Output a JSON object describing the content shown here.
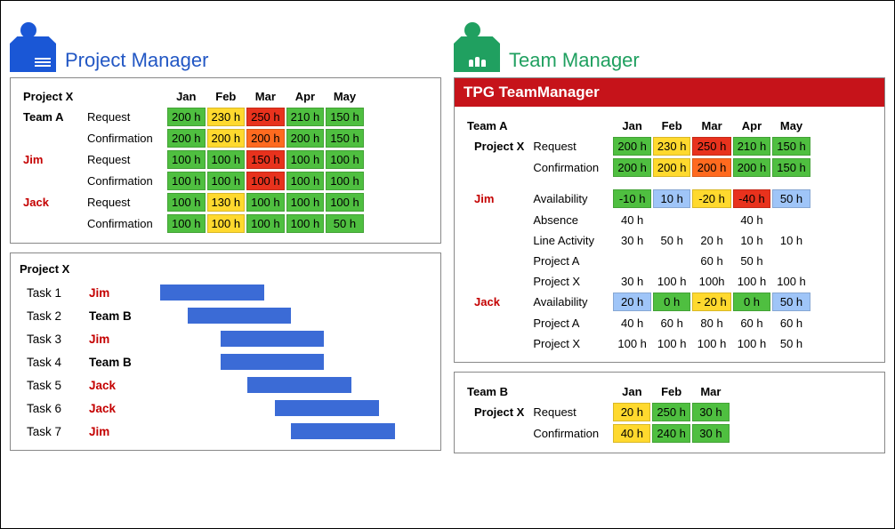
{
  "colors": {
    "green": "#4fbf40",
    "yellow": "#ffd92e",
    "orange": "#ff6a1f",
    "red": "#e8321d",
    "blue_light": "#9fc5f8",
    "gantt_bar": "#3b6bd6",
    "banner_red": "#c6131a",
    "pm_title": "#2257c4",
    "tm_title": "#20a060",
    "name_red": "#c40000"
  },
  "pm": {
    "title": "Project Manager",
    "table": {
      "project": "Project X",
      "months": [
        "Jan",
        "Feb",
        "Mar",
        "Apr",
        "May"
      ],
      "rows": [
        {
          "c1": "Team A",
          "c2": "Request",
          "c1_style": "bold",
          "cells": [
            {
              "v": "200 h",
              "c": "green"
            },
            {
              "v": "230 h",
              "c": "yellow"
            },
            {
              "v": "250 h",
              "c": "red"
            },
            {
              "v": "210 h",
              "c": "green"
            },
            {
              "v": "150 h",
              "c": "green"
            }
          ]
        },
        {
          "c1": "",
          "c2": "Confirmation",
          "cells": [
            {
              "v": "200 h",
              "c": "green"
            },
            {
              "v": "200 h",
              "c": "yellow"
            },
            {
              "v": "200 h",
              "c": "orange"
            },
            {
              "v": "200 h",
              "c": "green"
            },
            {
              "v": "150 h",
              "c": "green"
            }
          ]
        },
        {
          "c1": "Jim",
          "c2": "Request",
          "c1_style": "red",
          "cells": [
            {
              "v": "100 h",
              "c": "green"
            },
            {
              "v": "100 h",
              "c": "green"
            },
            {
              "v": "150 h",
              "c": "red"
            },
            {
              "v": "100 h",
              "c": "green"
            },
            {
              "v": "100 h",
              "c": "green"
            }
          ]
        },
        {
          "c1": "",
          "c2": "Confirmation",
          "cells": [
            {
              "v": "100 h",
              "c": "green"
            },
            {
              "v": "100 h",
              "c": "green"
            },
            {
              "v": "100 h",
              "c": "red"
            },
            {
              "v": "100 h",
              "c": "green"
            },
            {
              "v": "100 h",
              "c": "green"
            }
          ]
        },
        {
          "c1": "Jack",
          "c2": "Request",
          "c1_style": "red",
          "cells": [
            {
              "v": "100 h",
              "c": "green"
            },
            {
              "v": "130 h",
              "c": "yellow"
            },
            {
              "v": "100 h",
              "c": "green"
            },
            {
              "v": "100 h",
              "c": "green"
            },
            {
              "v": "100 h",
              "c": "green"
            }
          ]
        },
        {
          "c1": "",
          "c2": "Confirmation",
          "cells": [
            {
              "v": "100 h",
              "c": "green"
            },
            {
              "v": "100 h",
              "c": "yellow"
            },
            {
              "v": "100 h",
              "c": "green"
            },
            {
              "v": "100 h",
              "c": "green"
            },
            {
              "v": "50 h",
              "c": "green"
            }
          ]
        }
      ]
    },
    "gantt": {
      "project": "Project X",
      "track_width_pct": 100,
      "rows": [
        {
          "task": "Task 1",
          "who": "Jim",
          "who_style": "red",
          "start": 0,
          "len": 38
        },
        {
          "task": "Task 2",
          "who": "Team B",
          "who_style": "bold",
          "start": 10,
          "len": 38
        },
        {
          "task": "Task 3",
          "who": "Jim",
          "who_style": "red",
          "start": 22,
          "len": 38
        },
        {
          "task": "Task 4",
          "who": "Team B",
          "who_style": "bold",
          "start": 22,
          "len": 38
        },
        {
          "task": "Task 5",
          "who": "Jack",
          "who_style": "red",
          "start": 32,
          "len": 38
        },
        {
          "task": "Task 6",
          "who": "Jack",
          "who_style": "red",
          "start": 42,
          "len": 38
        },
        {
          "task": "Task 7",
          "who": "Jim",
          "who_style": "red",
          "start": 48,
          "len": 38
        }
      ]
    }
  },
  "tm": {
    "title": "Team Manager",
    "banner": "TPG TeamManager",
    "table": {
      "months": [
        "Jan",
        "Feb",
        "Mar",
        "Apr",
        "May"
      ],
      "rows": [
        {
          "c1": "Team A",
          "c1_style": "bold",
          "c2": "",
          "cells": [
            "",
            "",
            "",
            "",
            ""
          ],
          "plain": true,
          "is_header_row": true
        },
        {
          "c1": "Project X",
          "indent": 1,
          "c2": "Request",
          "cells": [
            {
              "v": "200 h",
              "c": "green"
            },
            {
              "v": "230 h",
              "c": "yellow"
            },
            {
              "v": "250 h",
              "c": "red"
            },
            {
              "v": "210 h",
              "c": "green"
            },
            {
              "v": "150 h",
              "c": "green"
            }
          ]
        },
        {
          "c1": "",
          "c2": "Confirmation",
          "cells": [
            {
              "v": "200 h",
              "c": "green"
            },
            {
              "v": "200 h",
              "c": "yellow"
            },
            {
              "v": "200 h",
              "c": "orange"
            },
            {
              "v": "200 h",
              "c": "green"
            },
            {
              "v": "150 h",
              "c": "green"
            }
          ]
        },
        {
          "spacer": true
        },
        {
          "c1": "Jim",
          "c1_style": "red",
          "indent": 1,
          "c2": "Availability",
          "cells": [
            {
              "v": "-10 h",
              "c": "green"
            },
            {
              "v": "10 h",
              "c": "blue_light"
            },
            {
              "v": "-20 h",
              "c": "yellow"
            },
            {
              "v": "-40 h",
              "c": "red"
            },
            {
              "v": "50 h",
              "c": "blue_light"
            }
          ]
        },
        {
          "c1": "",
          "c2": "Absence",
          "plain": true,
          "cells": [
            {
              "v": "40 h"
            },
            {
              "v": ""
            },
            {
              "v": ""
            },
            {
              "v": "40 h"
            },
            {
              "v": ""
            }
          ]
        },
        {
          "c1": "",
          "c2": "Line Activity",
          "plain": true,
          "cells": [
            {
              "v": "30 h"
            },
            {
              "v": "50 h"
            },
            {
              "v": "20 h"
            },
            {
              "v": "10 h"
            },
            {
              "v": "10 h"
            }
          ]
        },
        {
          "c1": "",
          "c2": "Project A",
          "plain": true,
          "cells": [
            {
              "v": ""
            },
            {
              "v": ""
            },
            {
              "v": "60 h"
            },
            {
              "v": "50 h"
            },
            {
              "v": ""
            }
          ]
        },
        {
          "c1": "",
          "c2": "Project X",
          "plain": true,
          "cells": [
            {
              "v": "30 h"
            },
            {
              "v": "100 h"
            },
            {
              "v": "100h"
            },
            {
              "v": "100 h"
            },
            {
              "v": "100 h"
            }
          ]
        },
        {
          "c1": "Jack",
          "c1_style": "red",
          "indent": 1,
          "c2": "Availability",
          "cells": [
            {
              "v": "20 h",
              "c": "blue_light"
            },
            {
              "v": "0 h",
              "c": "green"
            },
            {
              "v": "- 20 h",
              "c": "yellow"
            },
            {
              "v": "0 h",
              "c": "green"
            },
            {
              "v": "50 h",
              "c": "blue_light"
            }
          ]
        },
        {
          "c1": "",
          "c2": "Project A",
          "plain": true,
          "cells": [
            {
              "v": "40 h"
            },
            {
              "v": "60 h"
            },
            {
              "v": "80 h"
            },
            {
              "v": "60 h"
            },
            {
              "v": "60 h"
            }
          ]
        },
        {
          "c1": "",
          "c2": "Project X",
          "plain": true,
          "cells": [
            {
              "v": "100 h"
            },
            {
              "v": "100 h"
            },
            {
              "v": "100 h"
            },
            {
              "v": "100 h"
            },
            {
              "v": "50 h"
            }
          ]
        }
      ]
    },
    "team_b": {
      "months": [
        "Jan",
        "Feb",
        "Mar"
      ],
      "rows": [
        {
          "c1": "Team B",
          "c1_style": "bold",
          "c2": "",
          "is_header_row": true
        },
        {
          "c1": "Project X",
          "indent": 1,
          "c2": "Request",
          "cells": [
            {
              "v": "20 h",
              "c": "yellow"
            },
            {
              "v": "250 h",
              "c": "green"
            },
            {
              "v": "30 h",
              "c": "green"
            }
          ]
        },
        {
          "c1": "",
          "c2": "Confirmation",
          "cells": [
            {
              "v": "40 h",
              "c": "yellow"
            },
            {
              "v": "240 h",
              "c": "green"
            },
            {
              "v": "30 h",
              "c": "green"
            }
          ]
        }
      ]
    }
  }
}
